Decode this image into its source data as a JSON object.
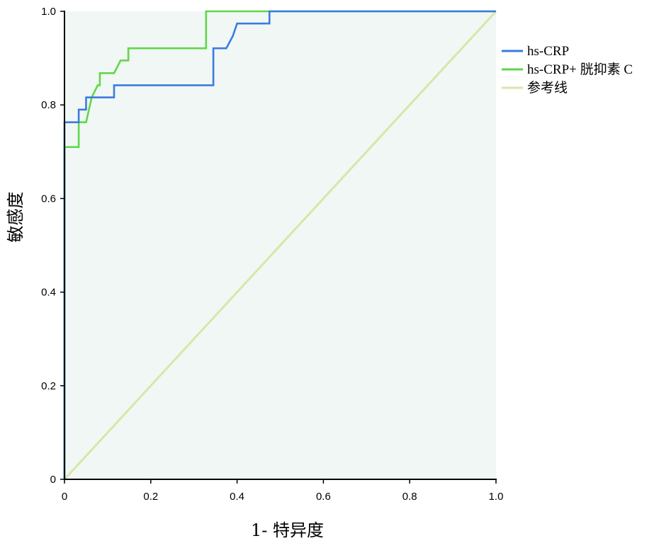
{
  "chart_data": {
    "type": "line",
    "title": "",
    "xlabel": "1- 特异度",
    "ylabel": "敏感度",
    "xlim": [
      0,
      1
    ],
    "ylim": [
      0,
      1
    ],
    "x_ticks": [
      "0",
      "0.2",
      "0.4",
      "0.6",
      "0.8",
      "1.0"
    ],
    "y_ticks": [
      "0",
      "0.2",
      "0.4",
      "0.6",
      "0.8",
      "1.0"
    ],
    "grid": false,
    "legend_position": "right-top",
    "background_color": "#f1f7f4",
    "series": [
      {
        "name": "hs-CRP",
        "color": "#3b7be0",
        "x": [
          0,
          0,
          0.033,
          0.033,
          0.05,
          0.05,
          0.115,
          0.115,
          0.345,
          0.345,
          0.375,
          0.39,
          0.4,
          0.475,
          0.475,
          1.0
        ],
        "y": [
          0,
          0.763,
          0.763,
          0.79,
          0.79,
          0.816,
          0.816,
          0.842,
          0.842,
          0.921,
          0.921,
          0.947,
          0.974,
          0.974,
          1.0,
          1.0
        ]
      },
      {
        "name": "hs-CRP+ 胱抑素 C",
        "color": "#5ed84a",
        "x": [
          0,
          0,
          0.033,
          0.033,
          0.05,
          0.063,
          0.077,
          0.082,
          0.082,
          0.115,
          0.13,
          0.135,
          0.148,
          0.148,
          0.328,
          0.328,
          1.0
        ],
        "y": [
          0,
          0.71,
          0.71,
          0.763,
          0.763,
          0.816,
          0.842,
          0.842,
          0.868,
          0.868,
          0.895,
          0.895,
          0.895,
          0.921,
          0.921,
          1.0,
          1.0
        ]
      },
      {
        "name": "参考线",
        "color": "#d8e6a8",
        "x": [
          0,
          1
        ],
        "y": [
          0,
          1
        ]
      }
    ]
  }
}
